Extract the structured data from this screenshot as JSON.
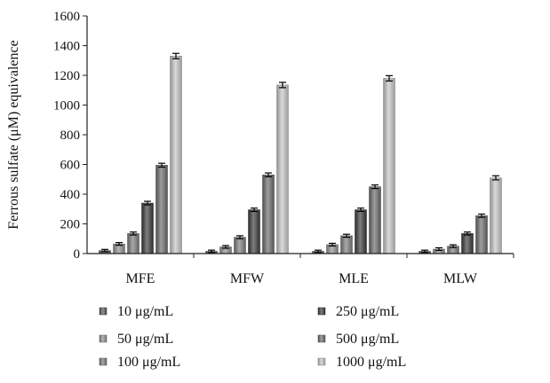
{
  "chart_data": {
    "type": "bar",
    "title": "",
    "ylabel": "Ferrous sulfate (μM) equivalence",
    "xlabel": "",
    "ylim": [
      0,
      1600
    ],
    "yticks": [
      0,
      200,
      400,
      600,
      800,
      1000,
      1200,
      1400,
      1600
    ],
    "grid": false,
    "legend_position": "bottom",
    "error_bars": true,
    "categories": [
      "MFE",
      "MFW",
      "MLE",
      "MLW"
    ],
    "series": [
      {
        "name": "10 μg/mL",
        "values": [
          20,
          15,
          15,
          15
        ],
        "errors": [
          2,
          2,
          2,
          2
        ],
        "color": "#595959"
      },
      {
        "name": "50 μg/mL",
        "values": [
          65,
          45,
          60,
          30
        ],
        "errors": [
          3,
          3,
          3,
          3
        ],
        "color": "#8e8e8e"
      },
      {
        "name": "100 μg/mL",
        "values": [
          135,
          110,
          120,
          50
        ],
        "errors": [
          4,
          4,
          4,
          3
        ],
        "color": "#7a7a7a"
      },
      {
        "name": "250 μg/mL",
        "values": [
          340,
          295,
          295,
          135
        ],
        "errors": [
          6,
          5,
          5,
          4
        ],
        "color": "#3a3a3a"
      },
      {
        "name": "500 μg/mL",
        "values": [
          595,
          530,
          450,
          255
        ],
        "errors": [
          7,
          7,
          6,
          5
        ],
        "color": "#6a6a6a"
      },
      {
        "name": "1000 μg/mL",
        "values": [
          1330,
          1135,
          1180,
          510
        ],
        "errors": [
          12,
          12,
          12,
          8
        ],
        "color": "#c4c4c4"
      }
    ]
  }
}
